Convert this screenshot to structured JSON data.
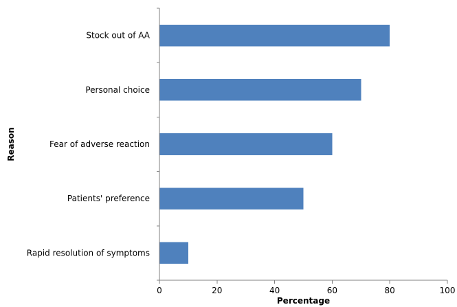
{
  "chart_data": {
    "type": "bar",
    "orientation": "horizontal",
    "categories": [
      "Stock out of AA",
      "Personal choice",
      "Fear of adverse reaction",
      "Patients' preference",
      "Rapid resolution of symptoms"
    ],
    "values": [
      80,
      70,
      60,
      50,
      10
    ],
    "title": "",
    "xlabel": "Percentage",
    "ylabel": "Reason",
    "xlim": [
      0,
      100
    ],
    "xticks": [
      "0",
      "20",
      "40",
      "60",
      "80",
      "100"
    ],
    "grid": false,
    "legend": "none",
    "bar_color": "#4F81BD"
  }
}
